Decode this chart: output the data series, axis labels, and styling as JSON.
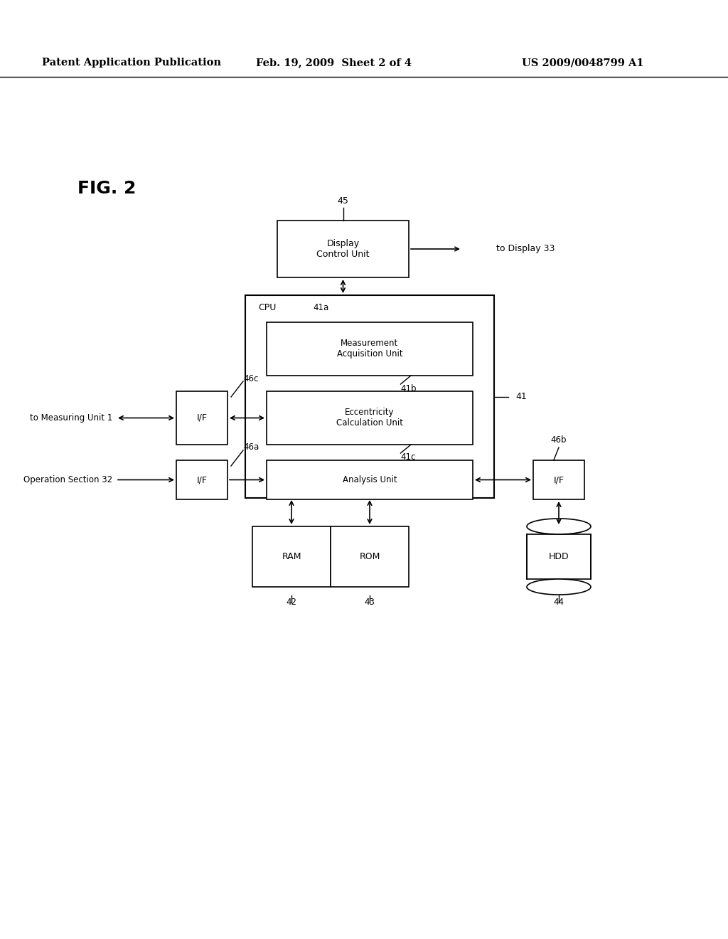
{
  "background_color": "#ffffff",
  "header_left": "Patent Application Publication",
  "header_center": "Feb. 19, 2009  Sheet 2 of 4",
  "header_right": "US 2009/0048799 A1",
  "fig_label": "FIG. 2",
  "header_fontsize": 10.5,
  "fig_label_fontsize": 18
}
